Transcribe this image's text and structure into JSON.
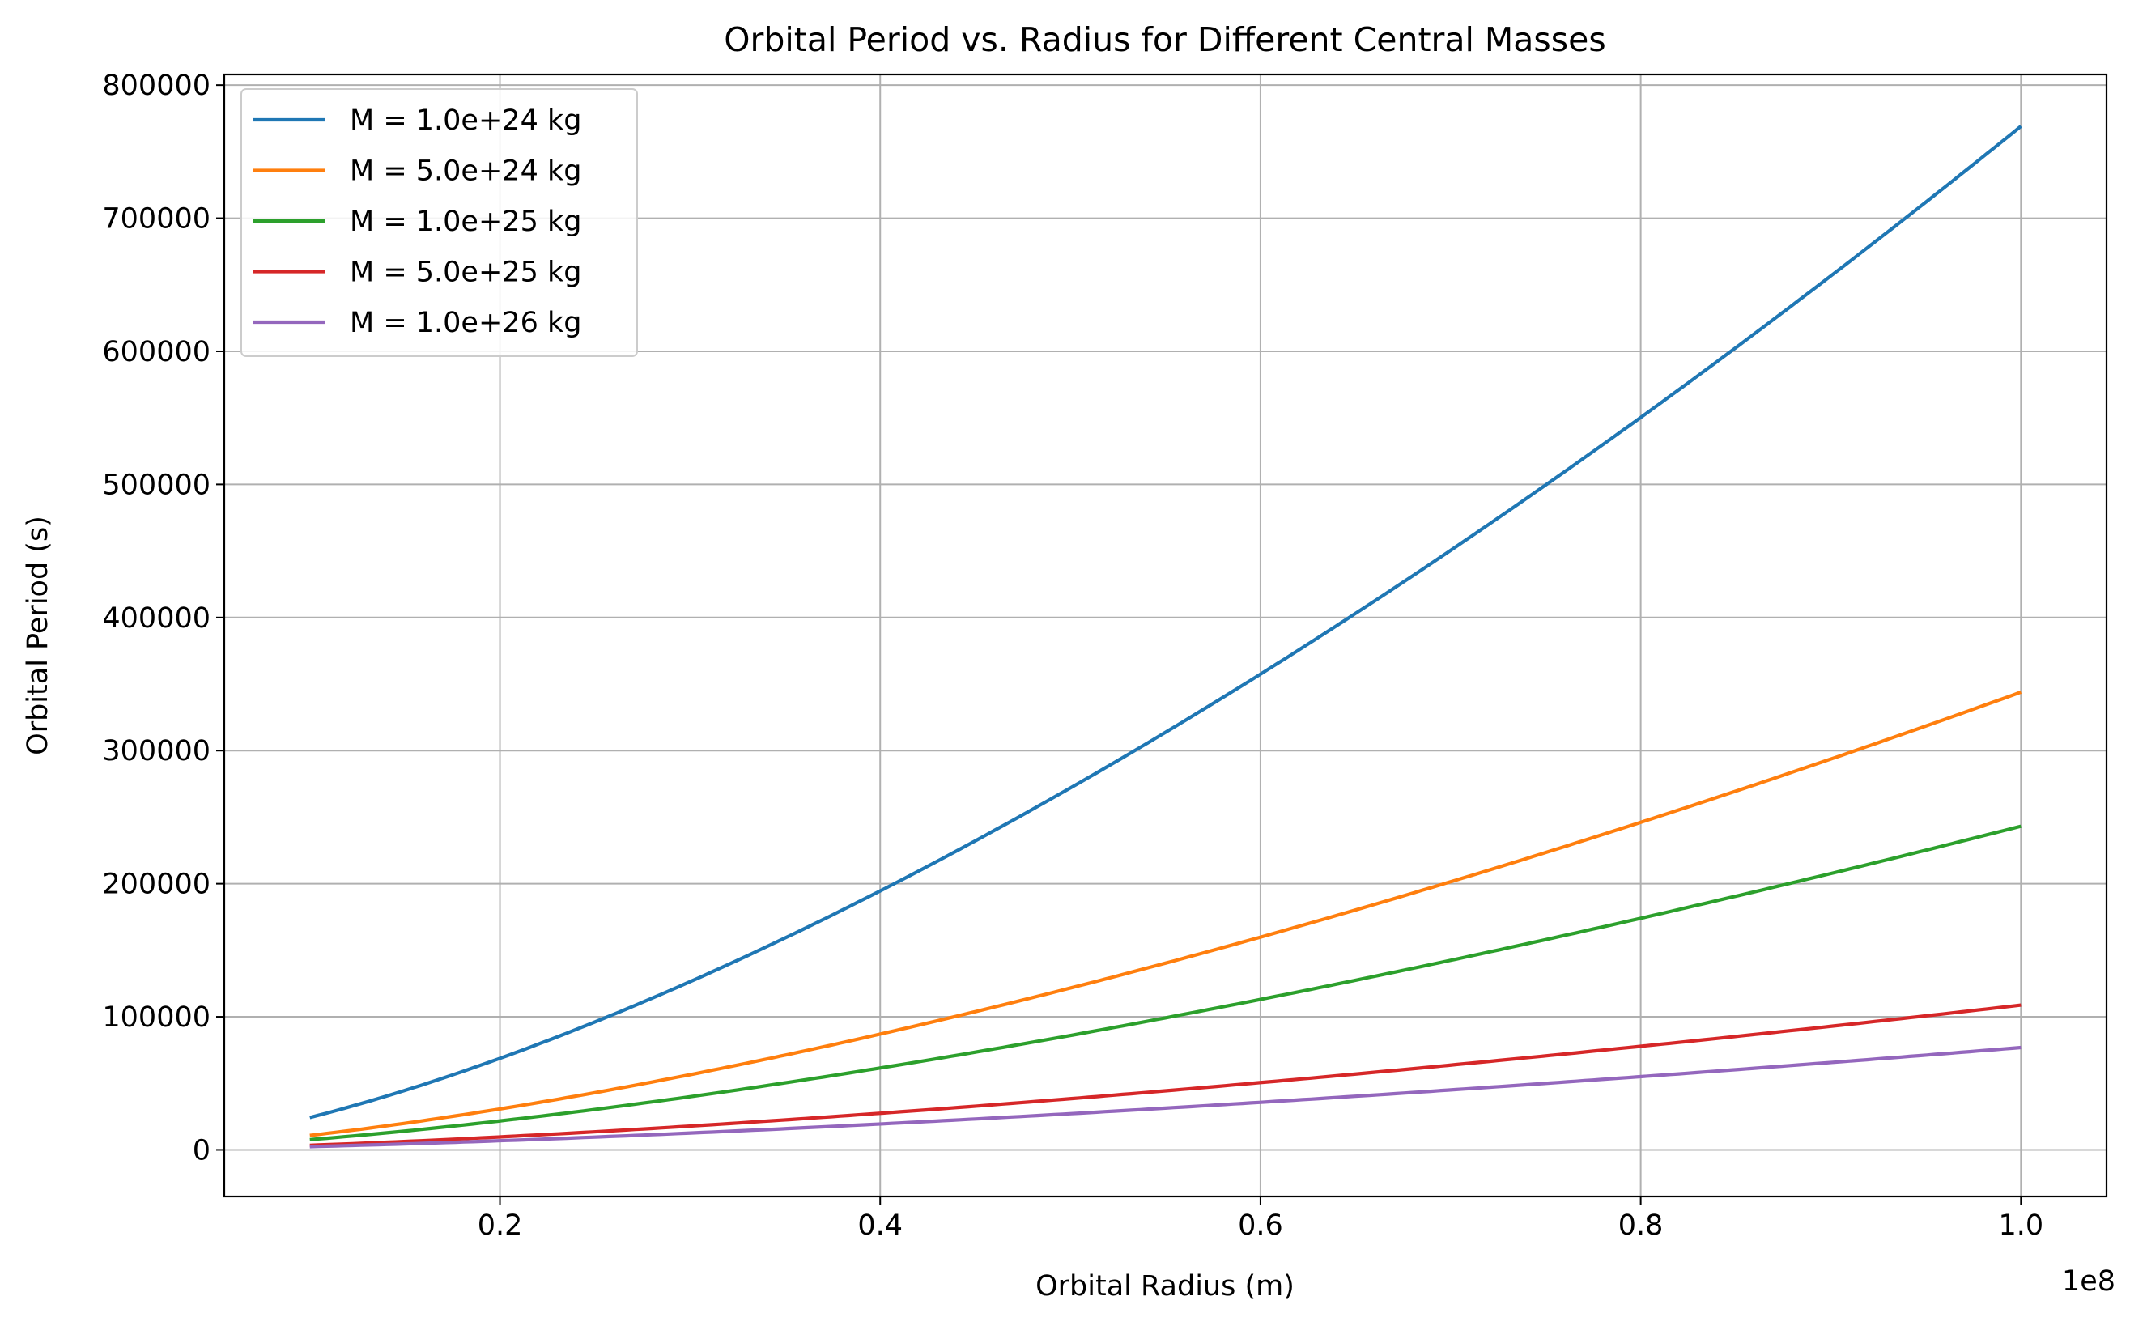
{
  "chart_data": {
    "type": "line",
    "title": "Orbital Period vs. Radius for Different Central Masses",
    "xlabel": "Orbital Radius (m)",
    "ylabel": "Orbital Period (s)",
    "x_offset_label": "1e8",
    "x_range": [
      10000000,
      100000000
    ],
    "xlim": [
      5500000,
      104500000
    ],
    "ylim": [
      -35000,
      808000
    ],
    "x_ticks": [
      20000000,
      40000000,
      60000000,
      80000000,
      100000000
    ],
    "x_tick_labels": [
      "0.2",
      "0.4",
      "0.6",
      "0.8",
      "1.0"
    ],
    "y_ticks": [
      0,
      100000,
      200000,
      300000,
      400000,
      500000,
      600000,
      700000,
      800000
    ],
    "y_tick_labels": [
      "0",
      "100000",
      "200000",
      "300000",
      "400000",
      "500000",
      "600000",
      "700000",
      "800000"
    ],
    "grid": true,
    "legend_position": "top-left",
    "series": [
      {
        "name": "M = 1.0e+24 kg",
        "color": "#1f77b4",
        "mass_kg": 1e+24
      },
      {
        "name": "M = 5.0e+24 kg",
        "color": "#ff7f0e",
        "mass_kg": 5e+24
      },
      {
        "name": "M = 1.0e+25 kg",
        "color": "#2ca02c",
        "mass_kg": 1e+25
      },
      {
        "name": "M = 5.0e+25 kg",
        "color": "#d62728",
        "mass_kg": 5e+25
      },
      {
        "name": "M = 1.0e+26 kg",
        "color": "#9467bd",
        "mass_kg": 1e+26
      }
    ]
  }
}
